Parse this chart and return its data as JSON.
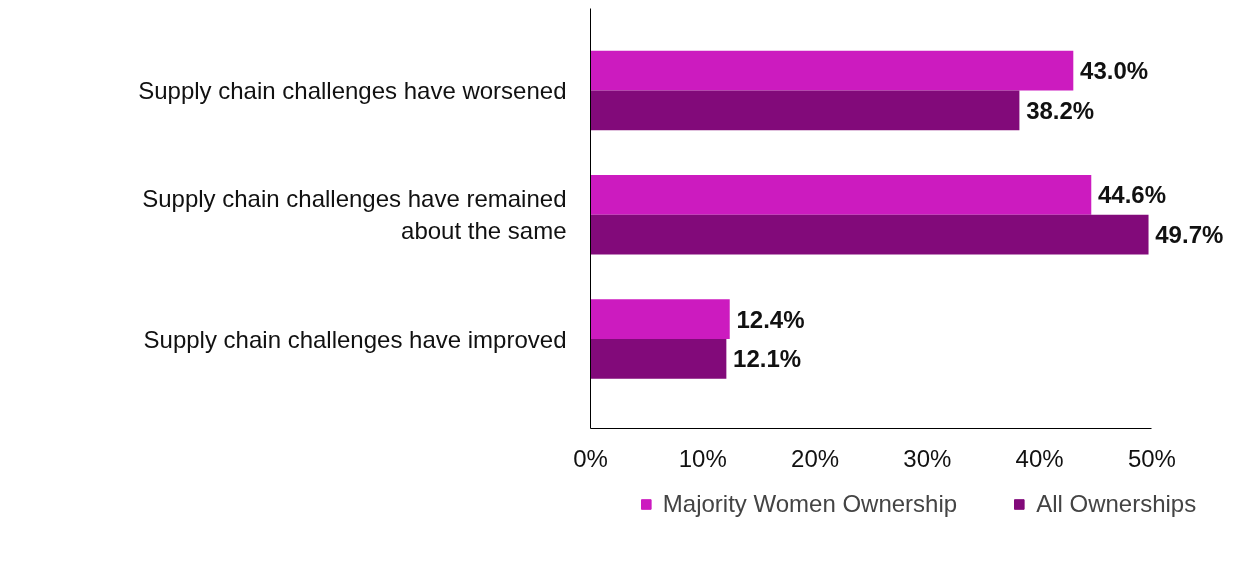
{
  "chart_data": {
    "type": "bar",
    "orientation": "horizontal",
    "categories": [
      "Supply chain challenges have worsened",
      "Supply chain challenges have remained about the same",
      "Supply chain challenges have improved"
    ],
    "series": [
      {
        "name": "Majority Women Ownership",
        "color": "#cc1bbf",
        "values": [
          43.0,
          44.6,
          12.4
        ],
        "value_labels": [
          "43.0%",
          "44.6%",
          "12.4%"
        ]
      },
      {
        "name": "All Ownerships",
        "color": "#820a7a",
        "values": [
          38.2,
          49.7,
          12.1
        ],
        "value_labels": [
          "38.2%",
          "49.7%",
          "12.1%"
        ]
      }
    ],
    "xlim": [
      0,
      50
    ],
    "xticks": [
      {
        "value": 0,
        "label": "0%"
      },
      {
        "value": 10,
        "label": "10%"
      },
      {
        "value": 20,
        "label": "20%"
      },
      {
        "value": 30,
        "label": "30%"
      },
      {
        "value": 40,
        "label": "40%"
      },
      {
        "value": 50,
        "label": "50%"
      }
    ],
    "grid": false,
    "legend": "bottom"
  }
}
